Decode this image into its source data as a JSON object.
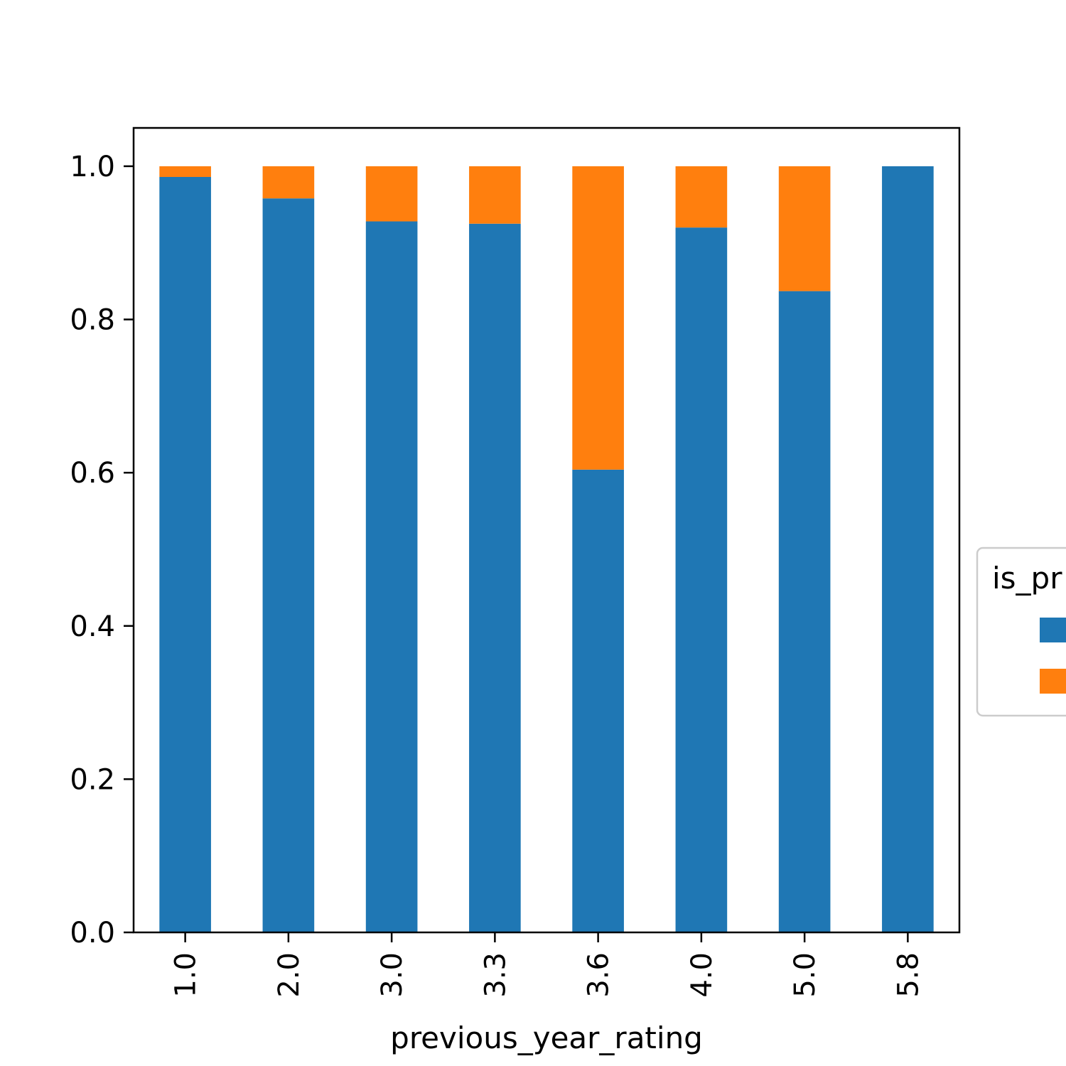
{
  "chart_data": {
    "type": "bar",
    "stacked": true,
    "title": "",
    "xlabel": "previous_year_rating",
    "ylabel": "",
    "categories": [
      "1.0",
      "2.0",
      "3.0",
      "3.3",
      "3.6",
      "4.0",
      "5.0",
      "5.8"
    ],
    "ylim": [
      0,
      1.05
    ],
    "yticks": [
      "0.0",
      "0.2",
      "0.4",
      "0.6",
      "0.8",
      "1.0"
    ],
    "series": [
      {
        "color": "#1f77b4",
        "values": [
          0.986,
          0.958,
          0.928,
          0.925,
          0.604,
          0.92,
          0.837,
          1.0
        ]
      },
      {
        "color": "#ff7f0e",
        "values": [
          0.014,
          0.042,
          0.072,
          0.075,
          0.396,
          0.08,
          0.163,
          0.0
        ]
      }
    ],
    "legend": {
      "title": "is_pr",
      "placement": "right"
    },
    "grid": false
  }
}
